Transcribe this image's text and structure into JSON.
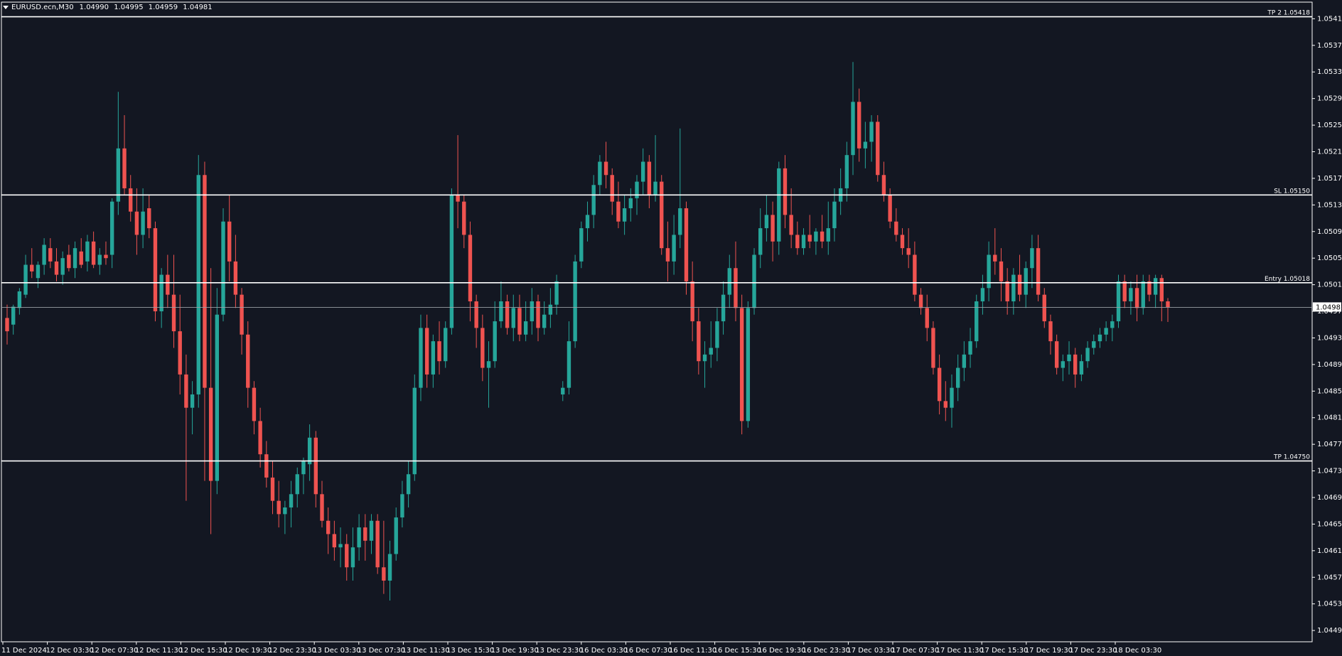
{
  "header": {
    "symbol_timeframe": "EURUSD.ecn,M30",
    "open": "1.04990",
    "high": "1.04995",
    "low": "1.04959",
    "close": "1.04981"
  },
  "colors": {
    "background": "#131722",
    "bull": "#26a69a",
    "bear": "#ef5350",
    "level_line": "#ffffff",
    "bid_line": "#9aa0a6",
    "axis_text": "#ffffff"
  },
  "levels": [
    {
      "label": "TP 2",
      "value": 1.05418,
      "text": "1.05418"
    },
    {
      "label": "SL",
      "value": 1.0515,
      "text": "1.05150"
    },
    {
      "label": "Entry",
      "value": 1.05018,
      "text": "1.05018"
    },
    {
      "label": "TP",
      "value": 1.0475,
      "text": "1.04750"
    }
  ],
  "current_price": {
    "value": 1.04981,
    "text": "1.04981"
  },
  "chart_data": {
    "type": "candlestick",
    "title": "",
    "y_ticks": [
      "1.05415",
      "1.05375",
      "1.05335",
      "1.05295",
      "1.05255",
      "1.05215",
      "1.05175",
      "1.05135",
      "1.05095",
      "1.05055",
      "1.05015",
      "1.04975",
      "1.04935",
      "1.04895",
      "1.04855",
      "1.04815",
      "1.04775",
      "1.04735",
      "1.04695",
      "1.04655",
      "1.04615",
      "1.04575",
      "1.04535",
      "1.04495"
    ],
    "ylim": [
      1.04478,
      1.0544
    ],
    "x_labels": [
      "11 Dec 2024",
      "12 Dec 03:30",
      "12 Dec 07:30",
      "12 Dec 11:30",
      "12 Dec 15:30",
      "12 Dec 19:30",
      "12 Dec 23:30",
      "13 Dec 03:30",
      "13 Dec 07:30",
      "13 Dec 11:30",
      "13 Dec 15:30",
      "13 Dec 19:30",
      "13 Dec 23:30",
      "16 Dec 03:30",
      "16 Dec 07:30",
      "16 Dec 11:30",
      "16 Dec 15:30",
      "16 Dec 19:30",
      "16 Dec 23:30",
      "17 Dec 03:30",
      "17 Dec 07:30",
      "17 Dec 11:30",
      "17 Dec 15:30",
      "17 Dec 19:30",
      "17 Dec 23:30",
      "18 Dec 03:30"
    ],
    "candles": [
      [
        1.04965,
        1.04985,
        1.04925,
        1.04945
      ],
      [
        1.04955,
        1.04985,
        1.0494,
        1.04982
      ],
      [
        1.0498,
        1.0501,
        1.0497,
        1.05005
      ],
      [
        1.05,
        1.0506,
        1.04995,
        1.05045
      ],
      [
        1.05045,
        1.0507,
        1.05025,
        1.05035
      ],
      [
        1.05025,
        1.0505,
        1.0501,
        1.05045
      ],
      [
        1.05045,
        1.05085,
        1.0503,
        1.05075
      ],
      [
        1.0507,
        1.05085,
        1.0504,
        1.0505
      ],
      [
        1.0505,
        1.0507,
        1.0502,
        1.0503
      ],
      [
        1.0503,
        1.05065,
        1.05015,
        1.05055
      ],
      [
        1.0506,
        1.05075,
        1.05035,
        1.0504
      ],
      [
        1.0504,
        1.0508,
        1.05025,
        1.0507
      ],
      [
        1.05065,
        1.05085,
        1.0504,
        1.05045
      ],
      [
        1.0505,
        1.0509,
        1.05035,
        1.0508
      ],
      [
        1.0508,
        1.05095,
        1.0504,
        1.05045
      ],
      [
        1.05045,
        1.0507,
        1.0503,
        1.0506
      ],
      [
        1.0506,
        1.0508,
        1.05045,
        1.05055
      ],
      [
        1.0506,
        1.05145,
        1.0504,
        1.0514
      ],
      [
        1.0514,
        1.05305,
        1.0512,
        1.0522
      ],
      [
        1.0522,
        1.0527,
        1.0515,
        1.0516
      ],
      [
        1.0516,
        1.0518,
        1.0511,
        1.05125
      ],
      [
        1.05125,
        1.0516,
        1.0506,
        1.0509
      ],
      [
        1.0509,
        1.0516,
        1.0507,
        1.05125
      ],
      [
        1.0513,
        1.0515,
        1.05085,
        1.051
      ],
      [
        1.051,
        1.0511,
        1.0496,
        1.04975
      ],
      [
        1.04975,
        1.0504,
        1.0495,
        1.0503
      ],
      [
        1.0503,
        1.0506,
        1.0498,
        1.05
      ],
      [
        1.05,
        1.0506,
        1.0492,
        1.04945
      ],
      [
        1.04945,
        1.05,
        1.0485,
        1.0488
      ],
      [
        1.0488,
        1.0491,
        1.0469,
        1.0483
      ],
      [
        1.0483,
        1.0487,
        1.0479,
        1.0485
      ],
      [
        1.0485,
        1.0521,
        1.0483,
        1.0518
      ],
      [
        1.0518,
        1.052,
        1.0472,
        1.0486
      ],
      [
        1.0486,
        1.0504,
        1.0464,
        1.0472
      ],
      [
        1.0472,
        1.0501,
        1.047,
        1.0497
      ],
      [
        1.0497,
        1.0513,
        1.0496,
        1.0511
      ],
      [
        1.0511,
        1.0515,
        1.0502,
        1.0505
      ],
      [
        1.0505,
        1.0509,
        1.0498,
        1.05
      ],
      [
        1.05,
        1.0501,
        1.0491,
        1.0494
      ],
      [
        1.0494,
        1.0496,
        1.0483,
        1.0486
      ],
      [
        1.0486,
        1.0487,
        1.0479,
        1.0481
      ],
      [
        1.0481,
        1.0483,
        1.0474,
        1.0476
      ],
      [
        1.0476,
        1.0478,
        1.0471,
        1.04725
      ],
      [
        1.04725,
        1.0475,
        1.0467,
        1.0469
      ],
      [
        1.0469,
        1.0472,
        1.0465,
        1.0467
      ],
      [
        1.0467,
        1.0469,
        1.0464,
        1.0468
      ],
      [
        1.0468,
        1.0472,
        1.0465,
        1.047
      ],
      [
        1.047,
        1.0474,
        1.0468,
        1.0473
      ],
      [
        1.0473,
        1.04755,
        1.047,
        1.0475
      ],
      [
        1.04745,
        1.04805,
        1.0472,
        1.04785
      ],
      [
        1.04785,
        1.04795,
        1.0468,
        1.047
      ],
      [
        1.047,
        1.0472,
        1.0465,
        1.0466
      ],
      [
        1.0466,
        1.0468,
        1.0461,
        1.0464
      ],
      [
        1.0464,
        1.0466,
        1.046,
        1.0462
      ],
      [
        1.0462,
        1.0465,
        1.0459,
        1.04625
      ],
      [
        1.04625,
        1.0464,
        1.0457,
        1.0459
      ],
      [
        1.0459,
        1.0465,
        1.0457,
        1.0462
      ],
      [
        1.0462,
        1.0467,
        1.046,
        1.0465
      ],
      [
        1.0465,
        1.0467,
        1.046,
        1.0463
      ],
      [
        1.0463,
        1.0467,
        1.0461,
        1.0466
      ],
      [
        1.0466,
        1.0467,
        1.0458,
        1.0459
      ],
      [
        1.0459,
        1.0466,
        1.0455,
        1.0457
      ],
      [
        1.0457,
        1.0463,
        1.0454,
        1.0461
      ],
      [
        1.0461,
        1.0468,
        1.046,
        1.04665
      ],
      [
        1.04665,
        1.0472,
        1.0465,
        1.047
      ],
      [
        1.047,
        1.0475,
        1.0468,
        1.0473
      ],
      [
        1.0473,
        1.0488,
        1.0472,
        1.0486
      ],
      [
        1.0486,
        1.0497,
        1.0484,
        1.0495
      ],
      [
        1.0495,
        1.0497,
        1.0486,
        1.0488
      ],
      [
        1.0488,
        1.0494,
        1.0486,
        1.0493
      ],
      [
        1.0493,
        1.0496,
        1.0488,
        1.049
      ],
      [
        1.049,
        1.0496,
        1.0489,
        1.0495
      ],
      [
        1.0495,
        1.0516,
        1.0494,
        1.0515
      ],
      [
        1.0515,
        1.0524,
        1.051,
        1.0514
      ],
      [
        1.0514,
        1.0515,
        1.0507,
        1.0509
      ],
      [
        1.0509,
        1.0511,
        1.0496,
        1.0499
      ],
      [
        1.0499,
        1.05,
        1.0492,
        1.0495
      ],
      [
        1.0495,
        1.0497,
        1.0487,
        1.0489
      ],
      [
        1.0489,
        1.0493,
        1.0483,
        1.049
      ],
      [
        1.049,
        1.0499,
        1.0489,
        1.0496
      ],
      [
        1.0496,
        1.0502,
        1.0495,
        1.0499
      ],
      [
        1.0499,
        1.05,
        1.0494,
        1.0495
      ],
      [
        1.0495,
        1.05,
        1.0493,
        1.0498
      ],
      [
        1.0498,
        1.05,
        1.0493,
        1.0494
      ],
      [
        1.0494,
        1.0499,
        1.0493,
        1.0496
      ],
      [
        1.0496,
        1.0501,
        1.0494,
        1.0499
      ],
      [
        1.0499,
        1.05,
        1.0493,
        1.0495
      ],
      [
        1.0495,
        1.0499,
        1.0494,
        1.0497
      ],
      [
        1.0497,
        1.0501,
        1.0495,
        1.04985
      ],
      [
        1.04985,
        1.0503,
        1.0497,
        1.0502
      ],
      [
        1.0485,
        1.0487,
        1.0484,
        1.0486
      ],
      [
        1.0486,
        1.0496,
        1.0485,
        1.0493
      ],
      [
        1.0493,
        1.0506,
        1.0492,
        1.0505
      ],
      [
        1.0505,
        1.0511,
        1.0504,
        1.051
      ],
      [
        1.051,
        1.0514,
        1.0508,
        1.0512
      ],
      [
        1.0512,
        1.0518,
        1.051,
        1.05165
      ],
      [
        1.05165,
        1.0521,
        1.0515,
        1.052
      ],
      [
        1.052,
        1.0523,
        1.0516,
        1.0518
      ],
      [
        1.0518,
        1.0519,
        1.0512,
        1.0514
      ],
      [
        1.0514,
        1.0517,
        1.051,
        1.0511
      ],
      [
        1.0511,
        1.0515,
        1.0509,
        1.0513
      ],
      [
        1.0513,
        1.0516,
        1.0511,
        1.05145
      ],
      [
        1.05145,
        1.0518,
        1.0512,
        1.0517
      ],
      [
        1.0517,
        1.0522,
        1.0515,
        1.052
      ],
      [
        1.052,
        1.0521,
        1.0513,
        1.0515
      ],
      [
        1.0515,
        1.0524,
        1.0514,
        1.0517
      ],
      [
        1.0517,
        1.0518,
        1.0506,
        1.0507
      ],
      [
        1.0507,
        1.0511,
        1.0502,
        1.0505
      ],
      [
        1.0505,
        1.0512,
        1.0503,
        1.0509
      ],
      [
        1.0509,
        1.0525,
        1.0507,
        1.0513
      ],
      [
        1.0513,
        1.0514,
        1.05,
        1.0502
      ],
      [
        1.0502,
        1.0505,
        1.0493,
        1.0496
      ],
      [
        1.0496,
        1.0498,
        1.0488,
        1.049
      ],
      [
        1.049,
        1.0493,
        1.0486,
        1.0491
      ],
      [
        1.0491,
        1.0496,
        1.0489,
        1.0492
      ],
      [
        1.0492,
        1.0498,
        1.049,
        1.0496
      ],
      [
        1.0496,
        1.0502,
        1.0494,
        1.05
      ],
      [
        1.05,
        1.0506,
        1.0498,
        1.0504
      ],
      [
        1.0504,
        1.0508,
        1.0496,
        1.0498
      ],
      [
        1.0498,
        1.05,
        1.0479,
        1.0481
      ],
      [
        1.0481,
        1.0499,
        1.048,
        1.0498
      ],
      [
        1.0498,
        1.0507,
        1.0497,
        1.0506
      ],
      [
        1.0506,
        1.0513,
        1.0504,
        1.051
      ],
      [
        1.051,
        1.0515,
        1.0508,
        1.0512
      ],
      [
        1.0512,
        1.0514,
        1.0505,
        1.0508
      ],
      [
        1.0508,
        1.052,
        1.0506,
        1.0519
      ],
      [
        1.0519,
        1.0521,
        1.051,
        1.0512
      ],
      [
        1.0512,
        1.0516,
        1.0507,
        1.0509
      ],
      [
        1.0509,
        1.0511,
        1.0506,
        1.0507
      ],
      [
        1.0507,
        1.051,
        1.0506,
        1.0509
      ],
      [
        1.0509,
        1.0512,
        1.0507,
        1.0508
      ],
      [
        1.0508,
        1.051,
        1.0506,
        1.05095
      ],
      [
        1.05095,
        1.0512,
        1.0507,
        1.0508
      ],
      [
        1.0508,
        1.0514,
        1.0506,
        1.051
      ],
      [
        1.051,
        1.0516,
        1.0508,
        1.0514
      ],
      [
        1.0514,
        1.0519,
        1.0512,
        1.0516
      ],
      [
        1.0516,
        1.0523,
        1.0514,
        1.0521
      ],
      [
        1.0521,
        1.0535,
        1.0518,
        1.0529
      ],
      [
        1.0529,
        1.0531,
        1.052,
        1.0522
      ],
      [
        1.0522,
        1.0526,
        1.0519,
        1.0523
      ],
      [
        1.0523,
        1.0527,
        1.052,
        1.0526
      ],
      [
        1.0526,
        1.0527,
        1.0517,
        1.0518
      ],
      [
        1.0518,
        1.052,
        1.0514,
        1.0515
      ],
      [
        1.0515,
        1.0516,
        1.051,
        1.0511
      ],
      [
        1.0511,
        1.0513,
        1.0508,
        1.0509
      ],
      [
        1.0509,
        1.051,
        1.0506,
        1.0507
      ],
      [
        1.0507,
        1.051,
        1.0504,
        1.0506
      ],
      [
        1.0506,
        1.0508,
        1.0499,
        1.05
      ],
      [
        1.05,
        1.0501,
        1.0497,
        1.0498
      ],
      [
        1.0498,
        1.05,
        1.0493,
        1.0495
      ],
      [
        1.0495,
        1.0496,
        1.0488,
        1.0489
      ],
      [
        1.0489,
        1.0491,
        1.0482,
        1.0484
      ],
      [
        1.0484,
        1.0487,
        1.0481,
        1.0483
      ],
      [
        1.0483,
        1.0488,
        1.048,
        1.0486
      ],
      [
        1.0486,
        1.0491,
        1.0484,
        1.0489
      ],
      [
        1.0489,
        1.0493,
        1.0487,
        1.0491
      ],
      [
        1.0491,
        1.0495,
        1.0489,
        1.0493
      ],
      [
        1.0493,
        1.05,
        1.0492,
        1.0499
      ],
      [
        1.0499,
        1.0503,
        1.0497,
        1.0501
      ],
      [
        1.0501,
        1.0508,
        1.0499,
        1.0506
      ],
      [
        1.0506,
        1.051,
        1.0503,
        1.0505
      ],
      [
        1.0505,
        1.0507,
        1.0499,
        1.0502
      ],
      [
        1.0502,
        1.0504,
        1.0497,
        1.0499
      ],
      [
        1.0499,
        1.0504,
        1.0497,
        1.0503
      ],
      [
        1.0503,
        1.0506,
        1.0499,
        1.05
      ],
      [
        1.05,
        1.0505,
        1.0498,
        1.0504
      ],
      [
        1.0504,
        1.0509,
        1.0501,
        1.0507
      ],
      [
        1.0507,
        1.0509,
        1.0499,
        1.05
      ],
      [
        1.05,
        1.0501,
        1.0495,
        1.0496
      ],
      [
        1.0496,
        1.0497,
        1.0491,
        1.0493
      ],
      [
        1.0493,
        1.0494,
        1.0488,
        1.0489
      ],
      [
        1.0489,
        1.0491,
        1.0487,
        1.049
      ],
      [
        1.049,
        1.0493,
        1.0488,
        1.0491
      ],
      [
        1.0491,
        1.0492,
        1.0486,
        1.0488
      ],
      [
        1.0488,
        1.0491,
        1.0487,
        1.049
      ],
      [
        1.049,
        1.0493,
        1.0489,
        1.0492
      ],
      [
        1.0492,
        1.0494,
        1.0491,
        1.0493
      ],
      [
        1.0493,
        1.0495,
        1.0492,
        1.0494
      ],
      [
        1.0494,
        1.0496,
        1.0493,
        1.0495
      ],
      [
        1.0495,
        1.0497,
        1.0493,
        1.0496
      ],
      [
        1.0496,
        1.0503,
        1.0495,
        1.0502
      ],
      [
        1.0502,
        1.0503,
        1.0498,
        1.0499
      ],
      [
        1.0499,
        1.0502,
        1.0497,
        1.0501
      ],
      [
        1.0501,
        1.0503,
        1.0496,
        1.0498
      ],
      [
        1.0498,
        1.0503,
        1.0497,
        1.0502
      ],
      [
        1.0502,
        1.0503,
        1.0499,
        1.05
      ],
      [
        1.05,
        1.0503,
        1.0498,
        1.05025
      ],
      [
        1.05025,
        1.0503,
        1.0496,
        1.0499
      ],
      [
        1.0499,
        1.04995,
        1.04959,
        1.04981
      ]
    ]
  }
}
